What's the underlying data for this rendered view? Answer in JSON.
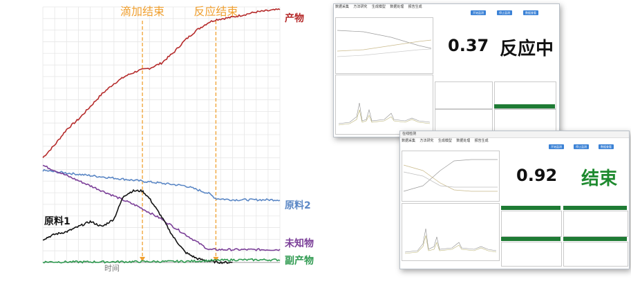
{
  "chart_data": {
    "type": "line",
    "xlabel": "时间",
    "ylabel": "",
    "grid": true,
    "annotations": [
      {
        "label": "滴加结束",
        "x": 0.42,
        "color": "#f0a030"
      },
      {
        "label": "反应结束",
        "x": 0.73,
        "color": "#f0a030"
      }
    ],
    "series": [
      {
        "name": "产物",
        "color": "#b52a2a",
        "x": [
          0,
          0.05,
          0.1,
          0.15,
          0.2,
          0.25,
          0.3,
          0.35,
          0.4,
          0.45,
          0.5,
          0.55,
          0.6,
          0.65,
          0.7,
          0.73,
          0.8,
          0.85,
          0.9,
          0.95,
          1.0
        ],
        "values": [
          0.41,
          0.46,
          0.52,
          0.56,
          0.61,
          0.66,
          0.7,
          0.73,
          0.75,
          0.76,
          0.78,
          0.82,
          0.87,
          0.91,
          0.94,
          0.95,
          0.96,
          0.97,
          0.98,
          0.985,
          0.99
        ]
      },
      {
        "name": "原料2",
        "color": "#5b87c5",
        "x": [
          0,
          0.1,
          0.2,
          0.3,
          0.4,
          0.5,
          0.6,
          0.7,
          0.73,
          0.8,
          0.9,
          1.0
        ],
        "values": [
          0.36,
          0.35,
          0.34,
          0.33,
          0.32,
          0.31,
          0.3,
          0.27,
          0.25,
          0.245,
          0.245,
          0.245
        ]
      },
      {
        "name": "未知物",
        "color": "#7b3f98",
        "x": [
          0,
          0.05,
          0.1,
          0.2,
          0.3,
          0.4,
          0.5,
          0.6,
          0.7,
          0.73,
          0.8,
          0.9,
          1.0
        ],
        "values": [
          0.38,
          0.36,
          0.34,
          0.3,
          0.26,
          0.22,
          0.17,
          0.11,
          0.05,
          0.05,
          0.05,
          0.05,
          0.05
        ]
      },
      {
        "name": "原料1",
        "color": "#111111",
        "x": [
          0,
          0.05,
          0.1,
          0.15,
          0.2,
          0.25,
          0.3,
          0.34,
          0.38,
          0.42,
          0.45,
          0.5,
          0.55,
          0.6,
          0.65,
          0.7,
          0.75,
          0.8
        ],
        "values": [
          0.09,
          0.11,
          0.12,
          0.14,
          0.16,
          0.14,
          0.17,
          0.26,
          0.28,
          0.28,
          0.25,
          0.18,
          0.1,
          0.04,
          0.015,
          0.005,
          0,
          0
        ]
      },
      {
        "name": "副产物",
        "color": "#2f9a50",
        "x": [
          0,
          0.2,
          0.4,
          0.6,
          0.73,
          0.8,
          1.0
        ],
        "values": [
          0.002,
          0.002,
          0.003,
          0.004,
          0.008,
          0.01,
          0.01
        ]
      }
    ]
  },
  "screenshot1": {
    "menu": [
      "数据采集",
      "方法研究",
      "生成模型",
      "数据处理",
      "报告生成"
    ],
    "value": "0.37",
    "status": "反应中",
    "status_color": "#111111",
    "buttons": [
      "开始监测",
      "停止监测",
      "数据查看"
    ]
  },
  "screenshot2": {
    "title": "在线检测",
    "menu": [
      "数据采集",
      "方法研究",
      "生成模型",
      "数据处理",
      "报告生成"
    ],
    "value": "0.92",
    "status": "结束",
    "status_color": "#1e8a2f",
    "buttons": [
      "开始监测",
      "停止监测",
      "数据查看"
    ]
  }
}
